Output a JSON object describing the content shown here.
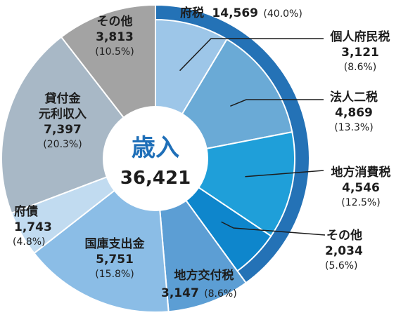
{
  "chart_data": {
    "type": "pie",
    "title": "歳入",
    "total": "36,421",
    "slices": [
      {
        "label": "個人府民税",
        "value": 3121,
        "value_text": "3,121",
        "percent_text": "(8.6%)",
        "color": "#9dc6e8"
      },
      {
        "label": "法人二税",
        "value": 4869,
        "value_text": "4,869",
        "percent_text": "(13.3%)",
        "color": "#6aaad6"
      },
      {
        "label": "地方消費税",
        "value": 4546,
        "value_text": "4,546",
        "percent_text": "(12.5%)",
        "color": "#1f9fd9"
      },
      {
        "label": "その他",
        "value": 2034,
        "value_text": "2,034",
        "percent_text": "(5.6%)",
        "color": "#0e86cc"
      },
      {
        "label": "地方交付税",
        "value": 3147,
        "value_text": "3,147",
        "percent_text": "(8.6%)",
        "color": "#5c9ed4"
      },
      {
        "label": "国庫支出金",
        "value": 5751,
        "value_text": "5,751",
        "percent_text": "(15.8%)",
        "color": "#8bbde6"
      },
      {
        "label": "府債",
        "value": 1743,
        "value_text": "1,743",
        "percent_text": "(4.8%)",
        "color": "#c1dbf0"
      },
      {
        "label": "貸付金元利収入",
        "value": 7397,
        "value_text": "7,397",
        "percent_text": "(20.3%)",
        "color": "#a8b8c6"
      },
      {
        "label": "その他",
        "value": 3813,
        "value_text": "3,813",
        "percent_text": "(10.5%)",
        "color": "#a3a3a3"
      }
    ],
    "group": {
      "label": "府税",
      "value_text": "14,569",
      "percent_text": "(40.0%)",
      "slice_count": 4,
      "color": "#2472b6"
    },
    "legend": "none"
  }
}
